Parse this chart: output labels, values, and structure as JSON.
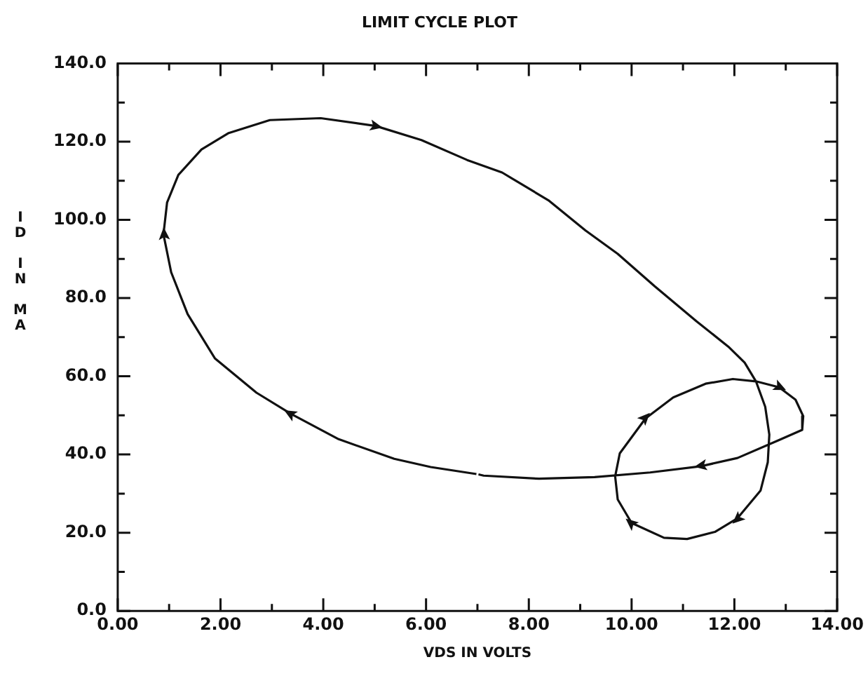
{
  "chart_data": {
    "type": "line",
    "title": "LIMIT CYCLE PLOT",
    "xlabel": "VDS IN VOLTS",
    "ylabel": "ID IN MA",
    "series": [
      {
        "color": "#111111",
        "x": [
          6.98,
          6.09,
          5.38,
          4.3,
          3.37,
          2.7,
          1.89,
          1.36,
          1.04,
          0.89,
          0.96,
          1.18,
          1.63,
          2.16,
          2.96,
          3.95,
          5.02,
          5.91,
          6.8,
          7.48,
          8.38,
          9.1,
          9.73,
          10.45,
          11.26,
          11.88,
          12.2,
          12.42,
          12.6,
          12.68,
          12.65,
          12.51,
          12.06,
          11.62,
          11.08,
          10.63,
          10.0,
          9.73,
          9.68,
          9.77,
          10.27,
          10.81,
          11.44,
          11.97,
          12.42,
          12.87,
          13.19,
          13.34,
          13.32,
          12.87,
          12.06,
          11.35,
          10.36,
          9.28,
          8.2,
          7.12,
          7.02
        ],
        "values": [
          35.0,
          36.8,
          38.9,
          43.9,
          50.4,
          55.8,
          64.6,
          75.9,
          86.6,
          96.3,
          104.4,
          111.5,
          118.0,
          122.2,
          125.5,
          126.0,
          124.0,
          120.4,
          115.3,
          112.1,
          105.0,
          97.3,
          91.3,
          83.0,
          74.1,
          67.6,
          63.5,
          58.7,
          52.2,
          45.1,
          38.0,
          30.8,
          23.7,
          20.2,
          18.4,
          18.7,
          22.5,
          28.5,
          34.4,
          40.3,
          49.2,
          54.6,
          58.1,
          59.3,
          58.7,
          57.2,
          54.0,
          49.8,
          46.3,
          43.7,
          39.1,
          37.0,
          35.4,
          34.2,
          33.8,
          34.6,
          34.9
        ]
      }
    ],
    "marker": "none",
    "line_style": "solid",
    "grid": false,
    "legend": false,
    "xlim": [
      0,
      14
    ],
    "xticks": [
      {
        "value": 0,
        "label": "0.00"
      },
      {
        "value": 1,
        "label": null
      },
      {
        "value": 2,
        "label": "2.00"
      },
      {
        "value": 3,
        "label": null
      },
      {
        "value": 4,
        "label": "4.00"
      },
      {
        "value": 5,
        "label": null
      },
      {
        "value": 6,
        "label": "6.00"
      },
      {
        "value": 7,
        "label": null
      },
      {
        "value": 8,
        "label": "8.00"
      },
      {
        "value": 9,
        "label": null
      },
      {
        "value": 10,
        "label": "10.00"
      },
      {
        "value": 11,
        "label": null
      },
      {
        "value": 12,
        "label": "12.00"
      },
      {
        "value": 13,
        "label": null
      },
      {
        "value": 14,
        "label": "14.00"
      }
    ],
    "ylim": [
      0,
      140
    ],
    "yticks": [
      {
        "value": 0,
        "label": "0.0"
      },
      {
        "value": 10,
        "label": null
      },
      {
        "value": 20,
        "label": "20.0"
      },
      {
        "value": 30,
        "label": null
      },
      {
        "value": 40,
        "label": "40.0"
      },
      {
        "value": 50,
        "label": null
      },
      {
        "value": 60,
        "label": "60.0"
      },
      {
        "value": 70,
        "label": null
      },
      {
        "value": 80,
        "label": "80.0"
      },
      {
        "value": 90,
        "label": null
      },
      {
        "value": 100,
        "label": "100.0"
      },
      {
        "value": 110,
        "label": null
      },
      {
        "value": 120,
        "label": "120.0"
      },
      {
        "value": 130,
        "label": null
      },
      {
        "value": 140,
        "label": "140.0"
      }
    ]
  }
}
